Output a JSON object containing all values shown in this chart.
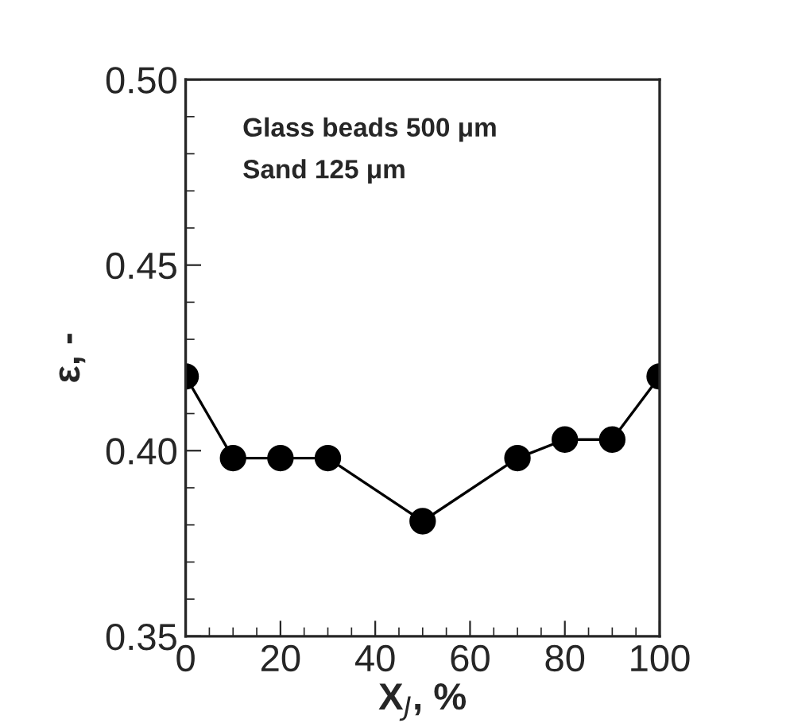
{
  "chart_data": {
    "type": "line",
    "xlabel": "X$_{J}$, %",
    "ylabel": "ε, -",
    "annotations": [
      "Glass beads 500 μm",
      "Sand 125 μm"
    ],
    "x": [
      0,
      10,
      20,
      30,
      50,
      70,
      80,
      90,
      100
    ],
    "series": [
      {
        "color": "#000000",
        "values": [
          0.42,
          0.398,
          0.398,
          0.398,
          0.381,
          0.398,
          0.403,
          0.403,
          0.42
        ]
      }
    ],
    "xlim": [
      0,
      100
    ],
    "ylim": [
      0.35,
      0.5
    ],
    "xticks": [
      0,
      20,
      40,
      60,
      80,
      100
    ],
    "yticks": [
      {
        "value": 0.35,
        "label": "0.35"
      },
      {
        "value": 0.4,
        "label": "0.40"
      },
      {
        "value": 0.45,
        "label": "0.45"
      },
      {
        "value": 0.5,
        "label": "0.50"
      }
    ],
    "marker": "circle",
    "line_style": "solid",
    "grid": false,
    "legend": false
  }
}
